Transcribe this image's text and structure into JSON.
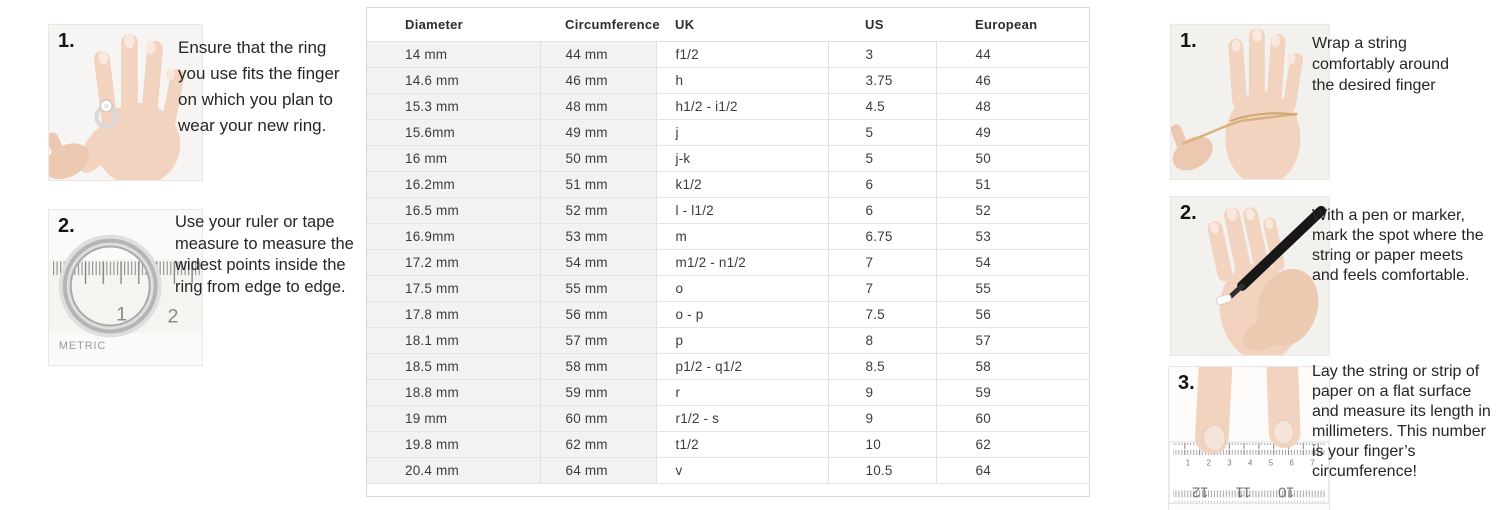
{
  "left_steps": [
    {
      "number": "1.",
      "text": "Ensure that the ring\nyou use fits the finger\non which you plan to\nwear your new ring."
    },
    {
      "number": "2.",
      "text": "Use your ruler or tape\nmeasure to measure the\nwidest points inside the\nring from edge to edge.",
      "ruler": {
        "label": "METRIC",
        "n1": "1",
        "n2": "2"
      }
    }
  ],
  "table": {
    "headers": [
      "Diameter",
      "Circumference",
      "UK",
      "US",
      "European"
    ],
    "rows": [
      [
        "14 mm",
        "44 mm",
        "f1/2",
        "3",
        "44"
      ],
      [
        "14.6 mm",
        "46 mm",
        "h",
        "3.75",
        "46"
      ],
      [
        "15.3 mm",
        "48 mm",
        "h1/2 - i1/2",
        "4.5",
        "48"
      ],
      [
        "15.6mm",
        "49 mm",
        "j",
        "5",
        "49"
      ],
      [
        "16 mm",
        "50 mm",
        "j-k",
        "5",
        "50"
      ],
      [
        "16.2mm",
        "51 mm",
        "k1/2",
        "6",
        "51"
      ],
      [
        "16.5 mm",
        "52 mm",
        "l - l1/2",
        "6",
        "52"
      ],
      [
        "16.9mm",
        "53 mm",
        "m",
        "6.75",
        "53"
      ],
      [
        "17.2 mm",
        "54 mm",
        "m1/2 - n1/2",
        "7",
        "54"
      ],
      [
        "17.5 mm",
        "55 mm",
        "o",
        "7",
        "55"
      ],
      [
        "17.8 mm",
        "56 mm",
        "o - p",
        "7.5",
        "56"
      ],
      [
        "18.1 mm",
        "57 mm",
        "p",
        "8",
        "57"
      ],
      [
        "18.5 mm",
        "58 mm",
        "p1/2 - q1/2",
        "8.5",
        "58"
      ],
      [
        "18.8 mm",
        "59 mm",
        "r",
        "9",
        "59"
      ],
      [
        "19 mm",
        "60 mm",
        "r1/2 - s",
        "9",
        "60"
      ],
      [
        "19.8 mm",
        "62 mm",
        "t1/2",
        "10",
        "62"
      ],
      [
        "20.4 mm",
        "64 mm",
        "v",
        "10.5",
        "64"
      ]
    ]
  },
  "right_steps": [
    {
      "number": "1.",
      "text": "Wrap a string\ncomfortably around\nthe desired finger"
    },
    {
      "number": "2.",
      "text": "With a pen or marker,\nmark the spot where the\nstring or paper meets\nand feels comfortable."
    },
    {
      "number": "3.",
      "text": "Lay the string or strip of\npaper on a flat surface\nand measure its length in\nmillimeters. This number\nis your finger’s\ncircumference!",
      "ruler_top": [
        "1",
        "2",
        "3",
        "4",
        "5",
        "6",
        "7"
      ],
      "ruler_bottom": [
        "12",
        "11",
        "10"
      ]
    }
  ],
  "colors": {
    "row_alt_bg": "#f3f2f1",
    "table_border": "#d9d7d5",
    "skin": "#f1d3bf",
    "ring_metal": "#c4c4c4",
    "pen": "#1c1c1c"
  }
}
